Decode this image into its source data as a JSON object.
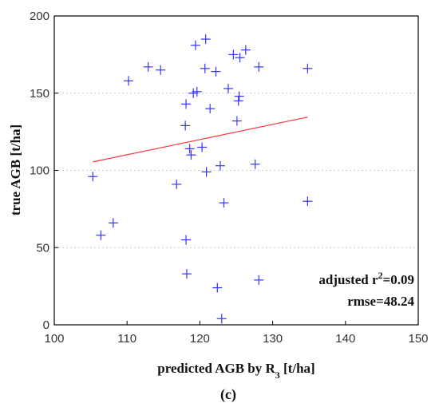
{
  "chart_data": {
    "type": "scatter",
    "panel_label": "(c)",
    "xlabel_main": "predicted AGB by R",
    "xlabel_sub": "3",
    "xlabel_unit": " [t/ha]",
    "ylabel": "true AGB [t/ha]",
    "xlim": [
      100,
      150
    ],
    "ylim": [
      0,
      200
    ],
    "xticks": [
      100,
      110,
      120,
      130,
      140,
      150
    ],
    "yticks": [
      0,
      50,
      100,
      150,
      200
    ],
    "grid": "horizontal-dotted",
    "marker": "plus",
    "colors": {
      "points": "#3333ff",
      "fit_line": "#ff3333",
      "frame": "#000000",
      "grid": "#cccccc"
    },
    "points": [
      {
        "x": 105.3,
        "y": 96
      },
      {
        "x": 106.4,
        "y": 58
      },
      {
        "x": 108.1,
        "y": 66
      },
      {
        "x": 110.2,
        "y": 158
      },
      {
        "x": 112.9,
        "y": 167
      },
      {
        "x": 114.6,
        "y": 165
      },
      {
        "x": 116.8,
        "y": 91
      },
      {
        "x": 118.0,
        "y": 129
      },
      {
        "x": 118.1,
        "y": 143
      },
      {
        "x": 118.1,
        "y": 55
      },
      {
        "x": 118.2,
        "y": 33
      },
      {
        "x": 118.6,
        "y": 114
      },
      {
        "x": 118.8,
        "y": 110
      },
      {
        "x": 119.1,
        "y": 150
      },
      {
        "x": 119.4,
        "y": 181
      },
      {
        "x": 119.6,
        "y": 151
      },
      {
        "x": 120.3,
        "y": 115
      },
      {
        "x": 120.7,
        "y": 166
      },
      {
        "x": 120.8,
        "y": 185
      },
      {
        "x": 120.9,
        "y": 99
      },
      {
        "x": 121.4,
        "y": 140
      },
      {
        "x": 122.2,
        "y": 164
      },
      {
        "x": 122.4,
        "y": 24
      },
      {
        "x": 122.8,
        "y": 103
      },
      {
        "x": 123.0,
        "y": 4
      },
      {
        "x": 123.3,
        "y": 79
      },
      {
        "x": 123.9,
        "y": 153
      },
      {
        "x": 124.6,
        "y": 175
      },
      {
        "x": 125.1,
        "y": 132
      },
      {
        "x": 125.3,
        "y": 145
      },
      {
        "x": 125.4,
        "y": 148
      },
      {
        "x": 125.5,
        "y": 173
      },
      {
        "x": 126.3,
        "y": 178
      },
      {
        "x": 127.6,
        "y": 104
      },
      {
        "x": 128.1,
        "y": 167
      },
      {
        "x": 128.1,
        "y": 29
      },
      {
        "x": 134.8,
        "y": 166
      },
      {
        "x": 134.8,
        "y": 80
      }
    ],
    "fit_line": {
      "x": [
        105.3,
        134.8
      ],
      "y": [
        105.5,
        134.5
      ]
    },
    "annotations": {
      "r2_prefix": "adjusted r",
      "r2_sup": "2",
      "r2_value": "=0.09",
      "rmse": "rmse=48.24"
    }
  }
}
